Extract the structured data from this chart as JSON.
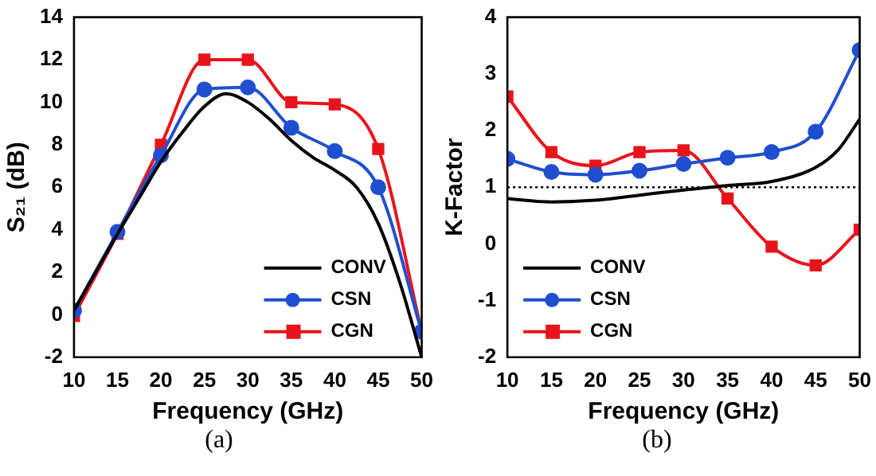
{
  "chart_data": [
    {
      "type": "line",
      "xlabel": "Frequency (GHz)",
      "ylabel": "S₂₁ (dB)",
      "xlim": [
        10,
        50
      ],
      "xticks": [
        10,
        15,
        20,
        25,
        30,
        35,
        40,
        45,
        50
      ],
      "ylim": [
        -2,
        14
      ],
      "yticks": [
        -2,
        0,
        2,
        4,
        6,
        8,
        10,
        12,
        14
      ],
      "grid": false,
      "legend": "bottom right",
      "annotations": [
        "(a)"
      ],
      "series": [
        {
          "name": "CONV",
          "color": "#000000",
          "marker": "none",
          "x": [
            10,
            12.5,
            15,
            17.5,
            20,
            22.5,
            25,
            27.5,
            30,
            32.5,
            35,
            37.5,
            40,
            42.5,
            45,
            47.5,
            50
          ],
          "values": [
            0.2,
            2.0,
            3.8,
            5.5,
            7.2,
            8.6,
            9.8,
            10.4,
            10.0,
            9.2,
            8.2,
            7.4,
            6.8,
            6.0,
            4.3,
            1.5,
            -2.0
          ]
        },
        {
          "name": "CSN",
          "color": "#1f4fd0",
          "marker": "circle",
          "x": [
            10,
            15,
            20,
            25,
            30,
            35,
            40,
            45,
            50
          ],
          "values": [
            0.2,
            3.9,
            7.5,
            10.6,
            10.7,
            8.8,
            7.7,
            6.0,
            -0.8
          ]
        },
        {
          "name": "CGN",
          "color": "#e8141c",
          "marker": "square",
          "x": [
            10,
            15,
            20,
            25,
            30,
            35,
            40,
            45,
            50
          ],
          "values": [
            -0.05,
            3.8,
            8.0,
            12.0,
            12.0,
            10.0,
            9.9,
            7.8,
            -0.8
          ]
        }
      ]
    },
    {
      "type": "line",
      "xlabel": "Frequency (GHz)",
      "ylabel": "K-Factor",
      "xlim": [
        10,
        50
      ],
      "xticks": [
        10,
        15,
        20,
        25,
        30,
        35,
        40,
        45,
        50
      ],
      "ylim": [
        -2,
        4
      ],
      "yticks": [
        -2,
        -1,
        0,
        1,
        2,
        3,
        4
      ],
      "grid": false,
      "legend": "bottom left",
      "annotations": [
        "(b)"
      ],
      "ref_lines": [
        {
          "axis": "y",
          "value": 1,
          "color": "#000000",
          "line_style": "dotted"
        }
      ],
      "series": [
        {
          "name": "CONV",
          "color": "#000000",
          "marker": "none",
          "x": [
            10,
            15,
            20,
            25,
            30,
            35,
            40,
            45,
            47.5,
            50
          ],
          "values": [
            0.8,
            0.74,
            0.77,
            0.86,
            0.95,
            1.03,
            1.1,
            1.35,
            1.65,
            2.2
          ]
        },
        {
          "name": "CSN",
          "color": "#1f4fd0",
          "marker": "circle",
          "x": [
            10,
            15,
            20,
            25,
            30,
            35,
            40,
            45,
            50
          ],
          "values": [
            1.5,
            1.27,
            1.22,
            1.29,
            1.41,
            1.52,
            1.62,
            1.98,
            3.42
          ]
        },
        {
          "name": "CGN",
          "color": "#e8141c",
          "marker": "square",
          "x": [
            10,
            15,
            20,
            25,
            30,
            35,
            40,
            45,
            50
          ],
          "values": [
            2.6,
            1.62,
            1.38,
            1.62,
            1.65,
            0.8,
            -0.05,
            -0.38,
            0.25
          ]
        }
      ]
    }
  ]
}
